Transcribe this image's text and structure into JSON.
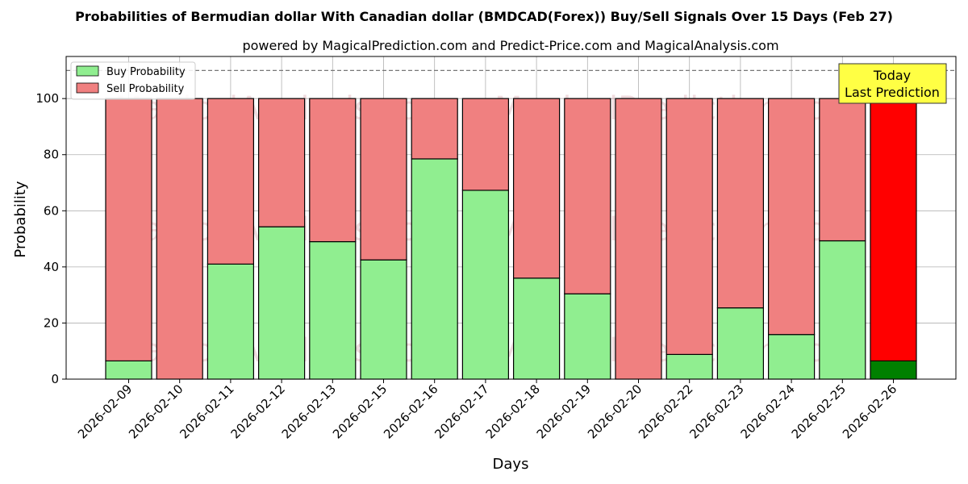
{
  "chart_data": {
    "type": "bar",
    "stacked": true,
    "title": "Probabilities of Bermudian dollar With Canadian dollar (BMDCAD(Forex)) Buy/Sell Signals Over 15 Days (Feb 27)",
    "subtitle": "powered by MagicalPrediction.com and Predict-Price.com and MagicalAnalysis.com",
    "xlabel": "Days",
    "ylabel": "Probability",
    "ylim": [
      0,
      115
    ],
    "yticks": [
      0,
      20,
      40,
      60,
      80,
      100
    ],
    "grid": true,
    "legend_position": "top-left",
    "reference_line": 110,
    "categories": [
      "2026-02-09",
      "2026-02-10",
      "2026-02-11",
      "2026-02-12",
      "2026-02-13",
      "2026-02-15",
      "2026-02-16",
      "2026-02-17",
      "2026-02-18",
      "2026-02-19",
      "2026-02-20",
      "2026-02-22",
      "2026-02-23",
      "2026-02-24",
      "2026-02-25",
      "2026-02-26"
    ],
    "series": [
      {
        "name": "Buy Probability",
        "color": "#90ee90",
        "values": [
          6.5,
          0,
          41,
          54.3,
          49,
          42.5,
          78.5,
          67.3,
          36,
          30.4,
          0,
          8.8,
          25.4,
          15.9,
          49.3,
          6.5
        ]
      },
      {
        "name": "Sell Probability",
        "color": "#f08080",
        "values": [
          93.5,
          100,
          59,
          45.7,
          51,
          57.5,
          21.5,
          32.7,
          64,
          69.6,
          100,
          91.2,
          74.6,
          84.1,
          50.7,
          93.5
        ]
      }
    ],
    "highlight": {
      "index": 15,
      "buy_color": "#008000",
      "sell_color": "#ff0000"
    },
    "annotation": {
      "lines": [
        "Today",
        "Last Prediction"
      ],
      "color": "#ffff44"
    },
    "watermarks": [
      "MagicalAnalysis.com",
      "MagicalPrediction.com"
    ]
  }
}
